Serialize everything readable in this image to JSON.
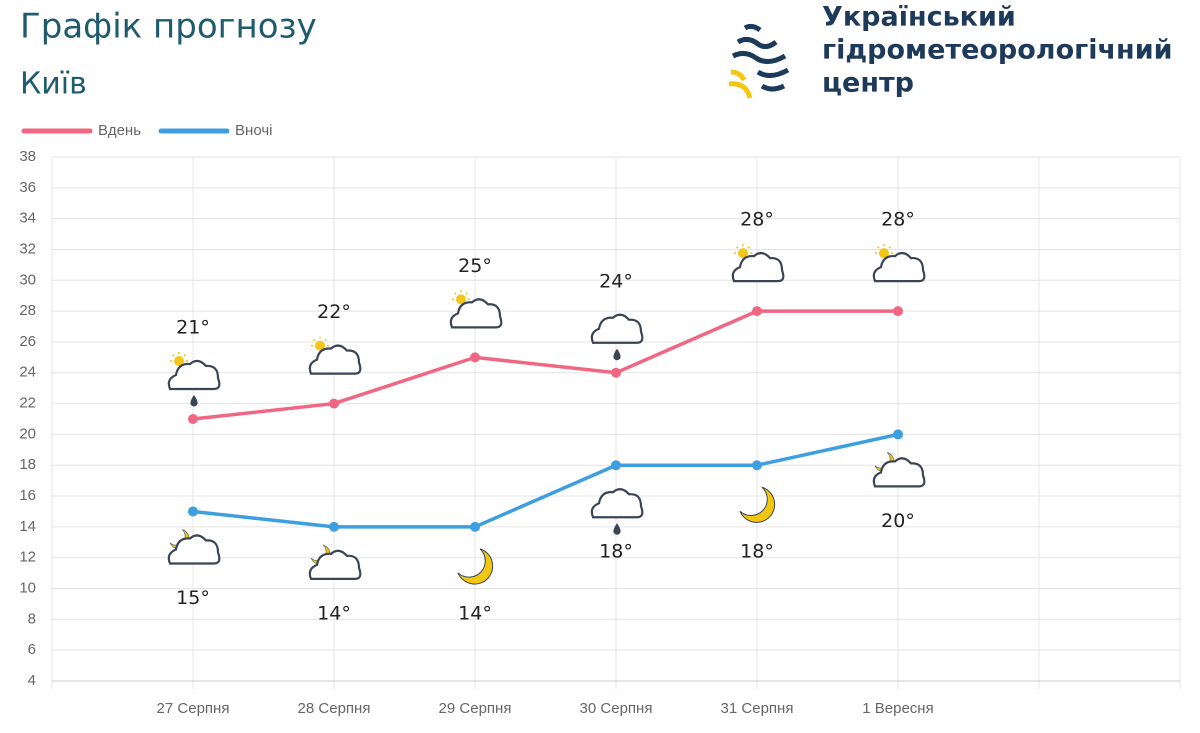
{
  "title": "Графік прогнозу",
  "logo": [
    "Український",
    "гідрометеорологічний",
    "центр"
  ],
  "chart_data": {
    "type": "line",
    "subtitle": "Київ",
    "categories": [
      null,
      "27 Серпня",
      "28 Серпня",
      "29 Серпня",
      "30 Серпня",
      "31 Серпня",
      "1 Вересня",
      null,
      null
    ],
    "series": [
      {
        "name": "Вдень",
        "color": "#f06783",
        "values": [
          null,
          21,
          22,
          25,
          24,
          28,
          28,
          null,
          null
        ],
        "value_labels": [
          null,
          "21°",
          "22°",
          "25°",
          "24°",
          "28°",
          "28°",
          null,
          null
        ]
      },
      {
        "name": "Вночі",
        "color": "#3d9fe0",
        "values": [
          null,
          15,
          14,
          14,
          18,
          18,
          20,
          null,
          null
        ],
        "value_labels": [
          null,
          "15°",
          "14°",
          "14°",
          "18°",
          "18°",
          "20°",
          null,
          null
        ]
      }
    ],
    "ylim": [
      4,
      38
    ],
    "yticks": [
      4,
      6,
      8,
      10,
      12,
      14,
      16,
      18,
      20,
      22,
      24,
      26,
      28,
      30,
      32,
      34,
      36,
      38
    ],
    "grid": true,
    "legend": "top-left"
  }
}
